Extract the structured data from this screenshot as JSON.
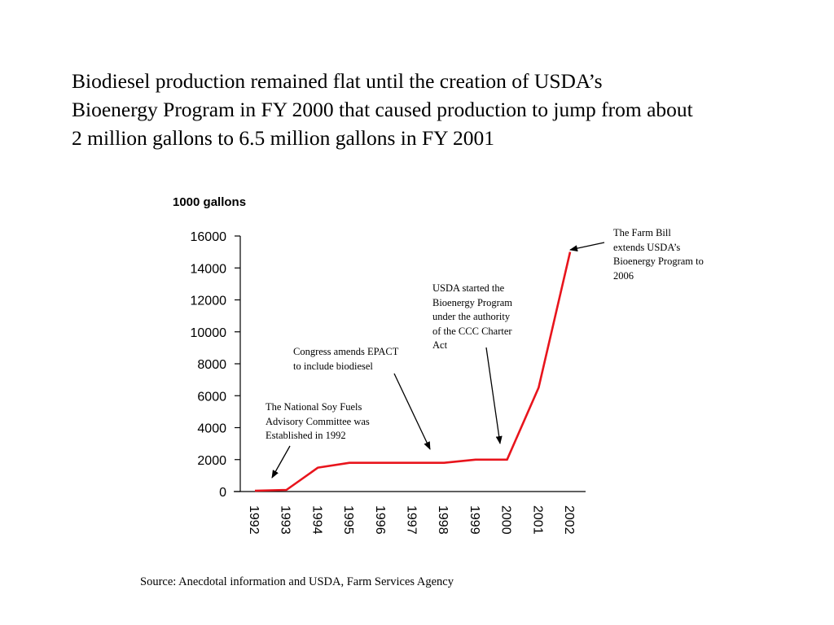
{
  "headline": {
    "lines": [
      "Biodiesel production remained flat until the creation of USDA’s",
      "Bioenergy Program in FY 2000 that caused production to jump from about",
      "2 million gallons to 6.5 million gallons in FY 2001"
    ]
  },
  "chart_data": {
    "type": "line",
    "ylabel": "1000 gallons",
    "xlabel": "",
    "title": "",
    "categories": [
      "1992",
      "1993",
      "1994",
      "1995",
      "1996",
      "1997",
      "1998",
      "1999",
      "2000",
      "2001",
      "2002"
    ],
    "values": [
      50,
      100,
      1500,
      1800,
      1800,
      1800,
      1800,
      2000,
      2000,
      6500,
      15000
    ],
    "ylim": [
      0,
      16000
    ],
    "yticks": [
      0,
      2000,
      4000,
      6000,
      8000,
      10000,
      12000,
      14000,
      16000
    ],
    "ytick_labels": [
      "0",
      "2000",
      "4000",
      "6000",
      "8000",
      "10000",
      "12000",
      "14000",
      "16000"
    ],
    "line_color": "#e8141c",
    "grid": false,
    "annotations": [
      {
        "id": "soy-fuels",
        "lines": [
          "The National Soy Fuels",
          "Advisory Committee was",
          "Established in 1992"
        ],
        "points_to": "1992"
      },
      {
        "id": "epact",
        "lines": [
          "Congress amends EPACT",
          "to include biodiesel"
        ],
        "points_to": "1998"
      },
      {
        "id": "usda-started",
        "lines": [
          "USDA started the",
          "Bioenergy Program",
          "under the authority",
          "of the CCC Charter",
          "Act"
        ],
        "points_to": "2000"
      },
      {
        "id": "farm-bill",
        "lines": [
          "The Farm Bill",
          "extends USDA’s",
          "Bioenergy Program to",
          "2006"
        ],
        "points_to": "2002"
      }
    ]
  },
  "source_text": "Source:  Anecdotal information and USDA, Farm Services Agency"
}
